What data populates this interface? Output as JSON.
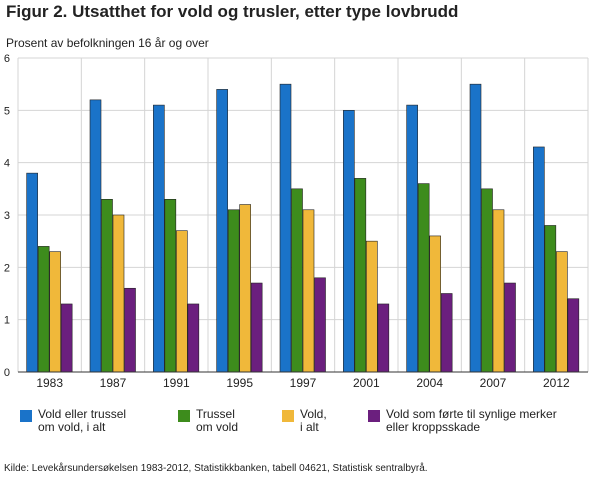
{
  "header": {
    "title": "Figur 2. Utsatthet for vold og trusler, etter type lovbrudd",
    "ylabel": "Prosent av befolkningen 16 år og over"
  },
  "source": "Kilde: Levekårsundersøkelsen 1983-2012, Statistikkbanken, tabell 04621, Statistisk sentralbyrå.",
  "chart_data": {
    "type": "bar",
    "title": "Figur 2. Utsatthet for vold og trusler, etter type lovbrudd",
    "ylabel": "Prosent av befolkningen 16 år og over",
    "xlabel": "",
    "categories": [
      "1983",
      "1987",
      "1991",
      "1995",
      "1997",
      "2001",
      "2004",
      "2007",
      "2012"
    ],
    "ylim": [
      0,
      6
    ],
    "yticks": [
      0,
      1,
      2,
      3,
      4,
      5,
      6
    ],
    "grid": true,
    "legend_position": "bottom",
    "series": [
      {
        "name": "Vold eller trussel\nom vold, i alt",
        "color": "#1a73c9",
        "values": [
          3.8,
          5.2,
          5.1,
          5.4,
          5.5,
          5.0,
          5.1,
          5.5,
          4.3
        ]
      },
      {
        "name": "Trussel\nom vold",
        "color": "#3d8c1c",
        "values": [
          2.4,
          3.3,
          3.3,
          3.1,
          3.5,
          3.7,
          3.6,
          3.5,
          2.8
        ]
      },
      {
        "name": "Vold,\ni alt",
        "color": "#f0b83a",
        "values": [
          2.3,
          3.0,
          2.7,
          3.2,
          3.1,
          2.5,
          2.6,
          3.1,
          2.3
        ]
      },
      {
        "name": "Vold som førte til synlige merker\neller kroppsskade",
        "color": "#6b1f7e",
        "values": [
          1.3,
          1.6,
          1.3,
          1.7,
          1.8,
          1.3,
          1.5,
          1.7,
          1.4
        ]
      }
    ]
  }
}
